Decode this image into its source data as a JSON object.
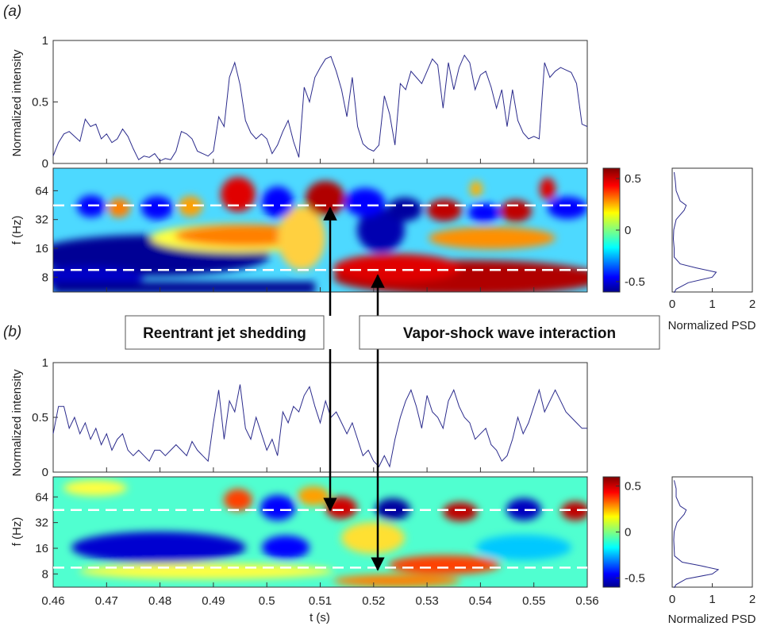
{
  "figure": {
    "panel_a_label": "(a)",
    "panel_b_label": "(b)",
    "annotations": [
      "Reentrant jet shedding",
      "Vapor-shock wave interaction"
    ]
  },
  "colors": {
    "signal_line": "#2b2b8c",
    "dashed_lines": "#ffffff",
    "arrows": "#000000",
    "colormap": [
      "#00008f",
      "#0000ff",
      "#00a0ff",
      "#00ffff",
      "#80ff80",
      "#ffff00",
      "#ff8000",
      "#ff0000",
      "#800000"
    ]
  },
  "chart_data": [
    {
      "id": "a-intensity",
      "type": "line",
      "ylabel": "Normalized intensity",
      "xlim": [
        0.46,
        0.56
      ],
      "ylim": [
        0,
        1
      ],
      "yticks": [
        "0",
        "0.5",
        "1"
      ],
      "x": [
        0.46,
        0.461,
        0.462,
        0.463,
        0.464,
        0.465,
        0.466,
        0.467,
        0.468,
        0.469,
        0.47,
        0.471,
        0.472,
        0.473,
        0.474,
        0.475,
        0.476,
        0.477,
        0.478,
        0.479,
        0.48,
        0.481,
        0.482,
        0.483,
        0.484,
        0.485,
        0.486,
        0.487,
        0.488,
        0.489,
        0.49,
        0.491,
        0.492,
        0.493,
        0.494,
        0.495,
        0.496,
        0.497,
        0.498,
        0.499,
        0.5,
        0.501,
        0.502,
        0.503,
        0.504,
        0.505,
        0.506,
        0.507,
        0.508,
        0.509,
        0.51,
        0.511,
        0.512,
        0.513,
        0.514,
        0.515,
        0.516,
        0.517,
        0.518,
        0.519,
        0.52,
        0.521,
        0.522,
        0.523,
        0.524,
        0.525,
        0.526,
        0.527,
        0.528,
        0.529,
        0.53,
        0.531,
        0.532,
        0.533,
        0.534,
        0.535,
        0.536,
        0.537,
        0.538,
        0.539,
        0.54,
        0.541,
        0.542,
        0.543,
        0.544,
        0.545,
        0.546,
        0.547,
        0.548,
        0.549,
        0.55,
        0.551,
        0.552,
        0.553,
        0.554,
        0.555,
        0.556,
        0.557,
        0.558,
        0.559,
        0.56
      ],
      "y": [
        0.06,
        0.17,
        0.24,
        0.26,
        0.22,
        0.18,
        0.36,
        0.3,
        0.32,
        0.2,
        0.24,
        0.17,
        0.2,
        0.28,
        0.22,
        0.12,
        0.03,
        0.06,
        0.05,
        0.08,
        0.02,
        0.04,
        0.03,
        0.1,
        0.26,
        0.24,
        0.2,
        0.1,
        0.08,
        0.06,
        0.1,
        0.38,
        0.3,
        0.7,
        0.82,
        0.64,
        0.35,
        0.25,
        0.2,
        0.24,
        0.2,
        0.08,
        0.15,
        0.26,
        0.35,
        0.18,
        0.05,
        0.62,
        0.5,
        0.7,
        0.78,
        0.85,
        0.87,
        0.75,
        0.6,
        0.38,
        0.7,
        0.3,
        0.16,
        0.12,
        0.1,
        0.15,
        0.55,
        0.4,
        0.15,
        0.65,
        0.6,
        0.75,
        0.7,
        0.65,
        0.75,
        0.85,
        0.8,
        0.45,
        0.82,
        0.6,
        0.78,
        0.88,
        0.82,
        0.6,
        0.72,
        0.75,
        0.62,
        0.45,
        0.6,
        0.3,
        0.6,
        0.35,
        0.25,
        0.2,
        0.22,
        0.2,
        0.82,
        0.7,
        0.75,
        0.78,
        0.76,
        0.74,
        0.65,
        0.32,
        0.3
      ]
    },
    {
      "id": "a-wavelet",
      "type": "heatmap",
      "ylabel": "f (Hz)",
      "xlim": [
        0.46,
        0.56
      ],
      "yticks": [
        "8",
        "16",
        "32",
        "64"
      ],
      "dashed_freqs_hz": [
        9.5,
        45
      ],
      "colorbar": {
        "ticks": [
          "0.5",
          "0",
          "-0.5"
        ],
        "range": [
          -0.6,
          0.6
        ]
      }
    },
    {
      "id": "a-psd",
      "type": "line",
      "xlabel": "Normalized PSD",
      "xlim": [
        0,
        2
      ],
      "xticks": [
        "0",
        "1",
        "2"
      ],
      "f": [
        5.5,
        6,
        7,
        8,
        9,
        10,
        11,
        13,
        16,
        20,
        25,
        32,
        40,
        45,
        50,
        64,
        80,
        100
      ],
      "psd": [
        0.05,
        0.1,
        0.4,
        1.0,
        1.1,
        0.6,
        0.2,
        0.05,
        0.05,
        0.03,
        0.04,
        0.1,
        0.3,
        0.35,
        0.2,
        0.1,
        0.08,
        0.05
      ]
    },
    {
      "id": "b-intensity",
      "type": "line",
      "ylabel": "Normalized intensity",
      "xlim": [
        0.46,
        0.56
      ],
      "ylim": [
        0,
        1
      ],
      "yticks": [
        "0",
        "0.5",
        "1"
      ],
      "x": [
        0.46,
        0.461,
        0.462,
        0.463,
        0.464,
        0.465,
        0.466,
        0.467,
        0.468,
        0.469,
        0.47,
        0.471,
        0.472,
        0.473,
        0.474,
        0.475,
        0.476,
        0.477,
        0.478,
        0.479,
        0.48,
        0.481,
        0.482,
        0.483,
        0.484,
        0.485,
        0.486,
        0.487,
        0.488,
        0.489,
        0.49,
        0.491,
        0.492,
        0.493,
        0.494,
        0.495,
        0.496,
        0.497,
        0.498,
        0.499,
        0.5,
        0.501,
        0.502,
        0.503,
        0.504,
        0.505,
        0.506,
        0.507,
        0.508,
        0.509,
        0.51,
        0.511,
        0.512,
        0.513,
        0.514,
        0.515,
        0.516,
        0.517,
        0.518,
        0.519,
        0.52,
        0.521,
        0.522,
        0.523,
        0.524,
        0.525,
        0.526,
        0.527,
        0.528,
        0.529,
        0.53,
        0.531,
        0.532,
        0.533,
        0.534,
        0.535,
        0.536,
        0.537,
        0.538,
        0.539,
        0.54,
        0.541,
        0.542,
        0.543,
        0.544,
        0.545,
        0.546,
        0.547,
        0.548,
        0.549,
        0.55,
        0.551,
        0.552,
        0.553,
        0.554,
        0.555,
        0.556,
        0.557,
        0.558,
        0.559,
        0.56
      ],
      "y": [
        0.35,
        0.6,
        0.6,
        0.4,
        0.5,
        0.35,
        0.45,
        0.3,
        0.4,
        0.25,
        0.35,
        0.2,
        0.3,
        0.35,
        0.2,
        0.15,
        0.2,
        0.15,
        0.1,
        0.2,
        0.2,
        0.15,
        0.2,
        0.25,
        0.2,
        0.15,
        0.28,
        0.2,
        0.15,
        0.1,
        0.45,
        0.75,
        0.3,
        0.65,
        0.55,
        0.8,
        0.4,
        0.3,
        0.5,
        0.35,
        0.2,
        0.3,
        0.15,
        0.55,
        0.45,
        0.6,
        0.55,
        0.7,
        0.78,
        0.6,
        0.45,
        0.65,
        0.5,
        0.55,
        0.45,
        0.35,
        0.45,
        0.3,
        0.15,
        0.2,
        0.1,
        0.05,
        0.15,
        0.05,
        0.3,
        0.5,
        0.65,
        0.75,
        0.6,
        0.4,
        0.7,
        0.55,
        0.5,
        0.4,
        0.65,
        0.75,
        0.6,
        0.5,
        0.45,
        0.3,
        0.35,
        0.4,
        0.25,
        0.2,
        0.1,
        0.15,
        0.3,
        0.5,
        0.35,
        0.45,
        0.6,
        0.75,
        0.55,
        0.65,
        0.75,
        0.65,
        0.55,
        0.5,
        0.45,
        0.4,
        0.4
      ]
    },
    {
      "id": "b-wavelet",
      "type": "heatmap",
      "ylabel": "f (Hz)",
      "xlabel": "t (s)",
      "xlim": [
        0.46,
        0.56
      ],
      "xticks": [
        "0.46",
        "0.47",
        "0.48",
        "0.49",
        "0.5",
        "0.51",
        "0.52",
        "0.53",
        "0.54",
        "0.55",
        "0.56"
      ],
      "yticks": [
        "8",
        "16",
        "32",
        "64"
      ],
      "dashed_freqs_hz": [
        9.5,
        45
      ],
      "colorbar": {
        "ticks": [
          "0.5",
          "0",
          "-0.5"
        ],
        "range": [
          -0.6,
          0.6
        ]
      }
    },
    {
      "id": "b-psd",
      "type": "line",
      "xlabel": "Normalized PSD",
      "xlim": [
        0,
        2
      ],
      "xticks": [
        "0",
        "1",
        "2"
      ],
      "f": [
        5.5,
        6,
        7,
        8,
        9,
        10,
        11,
        13,
        16,
        20,
        25,
        32,
        40,
        45,
        50,
        64,
        80,
        100
      ],
      "psd": [
        0.05,
        0.1,
        0.35,
        1.0,
        1.15,
        0.7,
        0.25,
        0.06,
        0.05,
        0.04,
        0.05,
        0.12,
        0.3,
        0.35,
        0.2,
        0.1,
        0.1,
        0.05
      ]
    }
  ]
}
